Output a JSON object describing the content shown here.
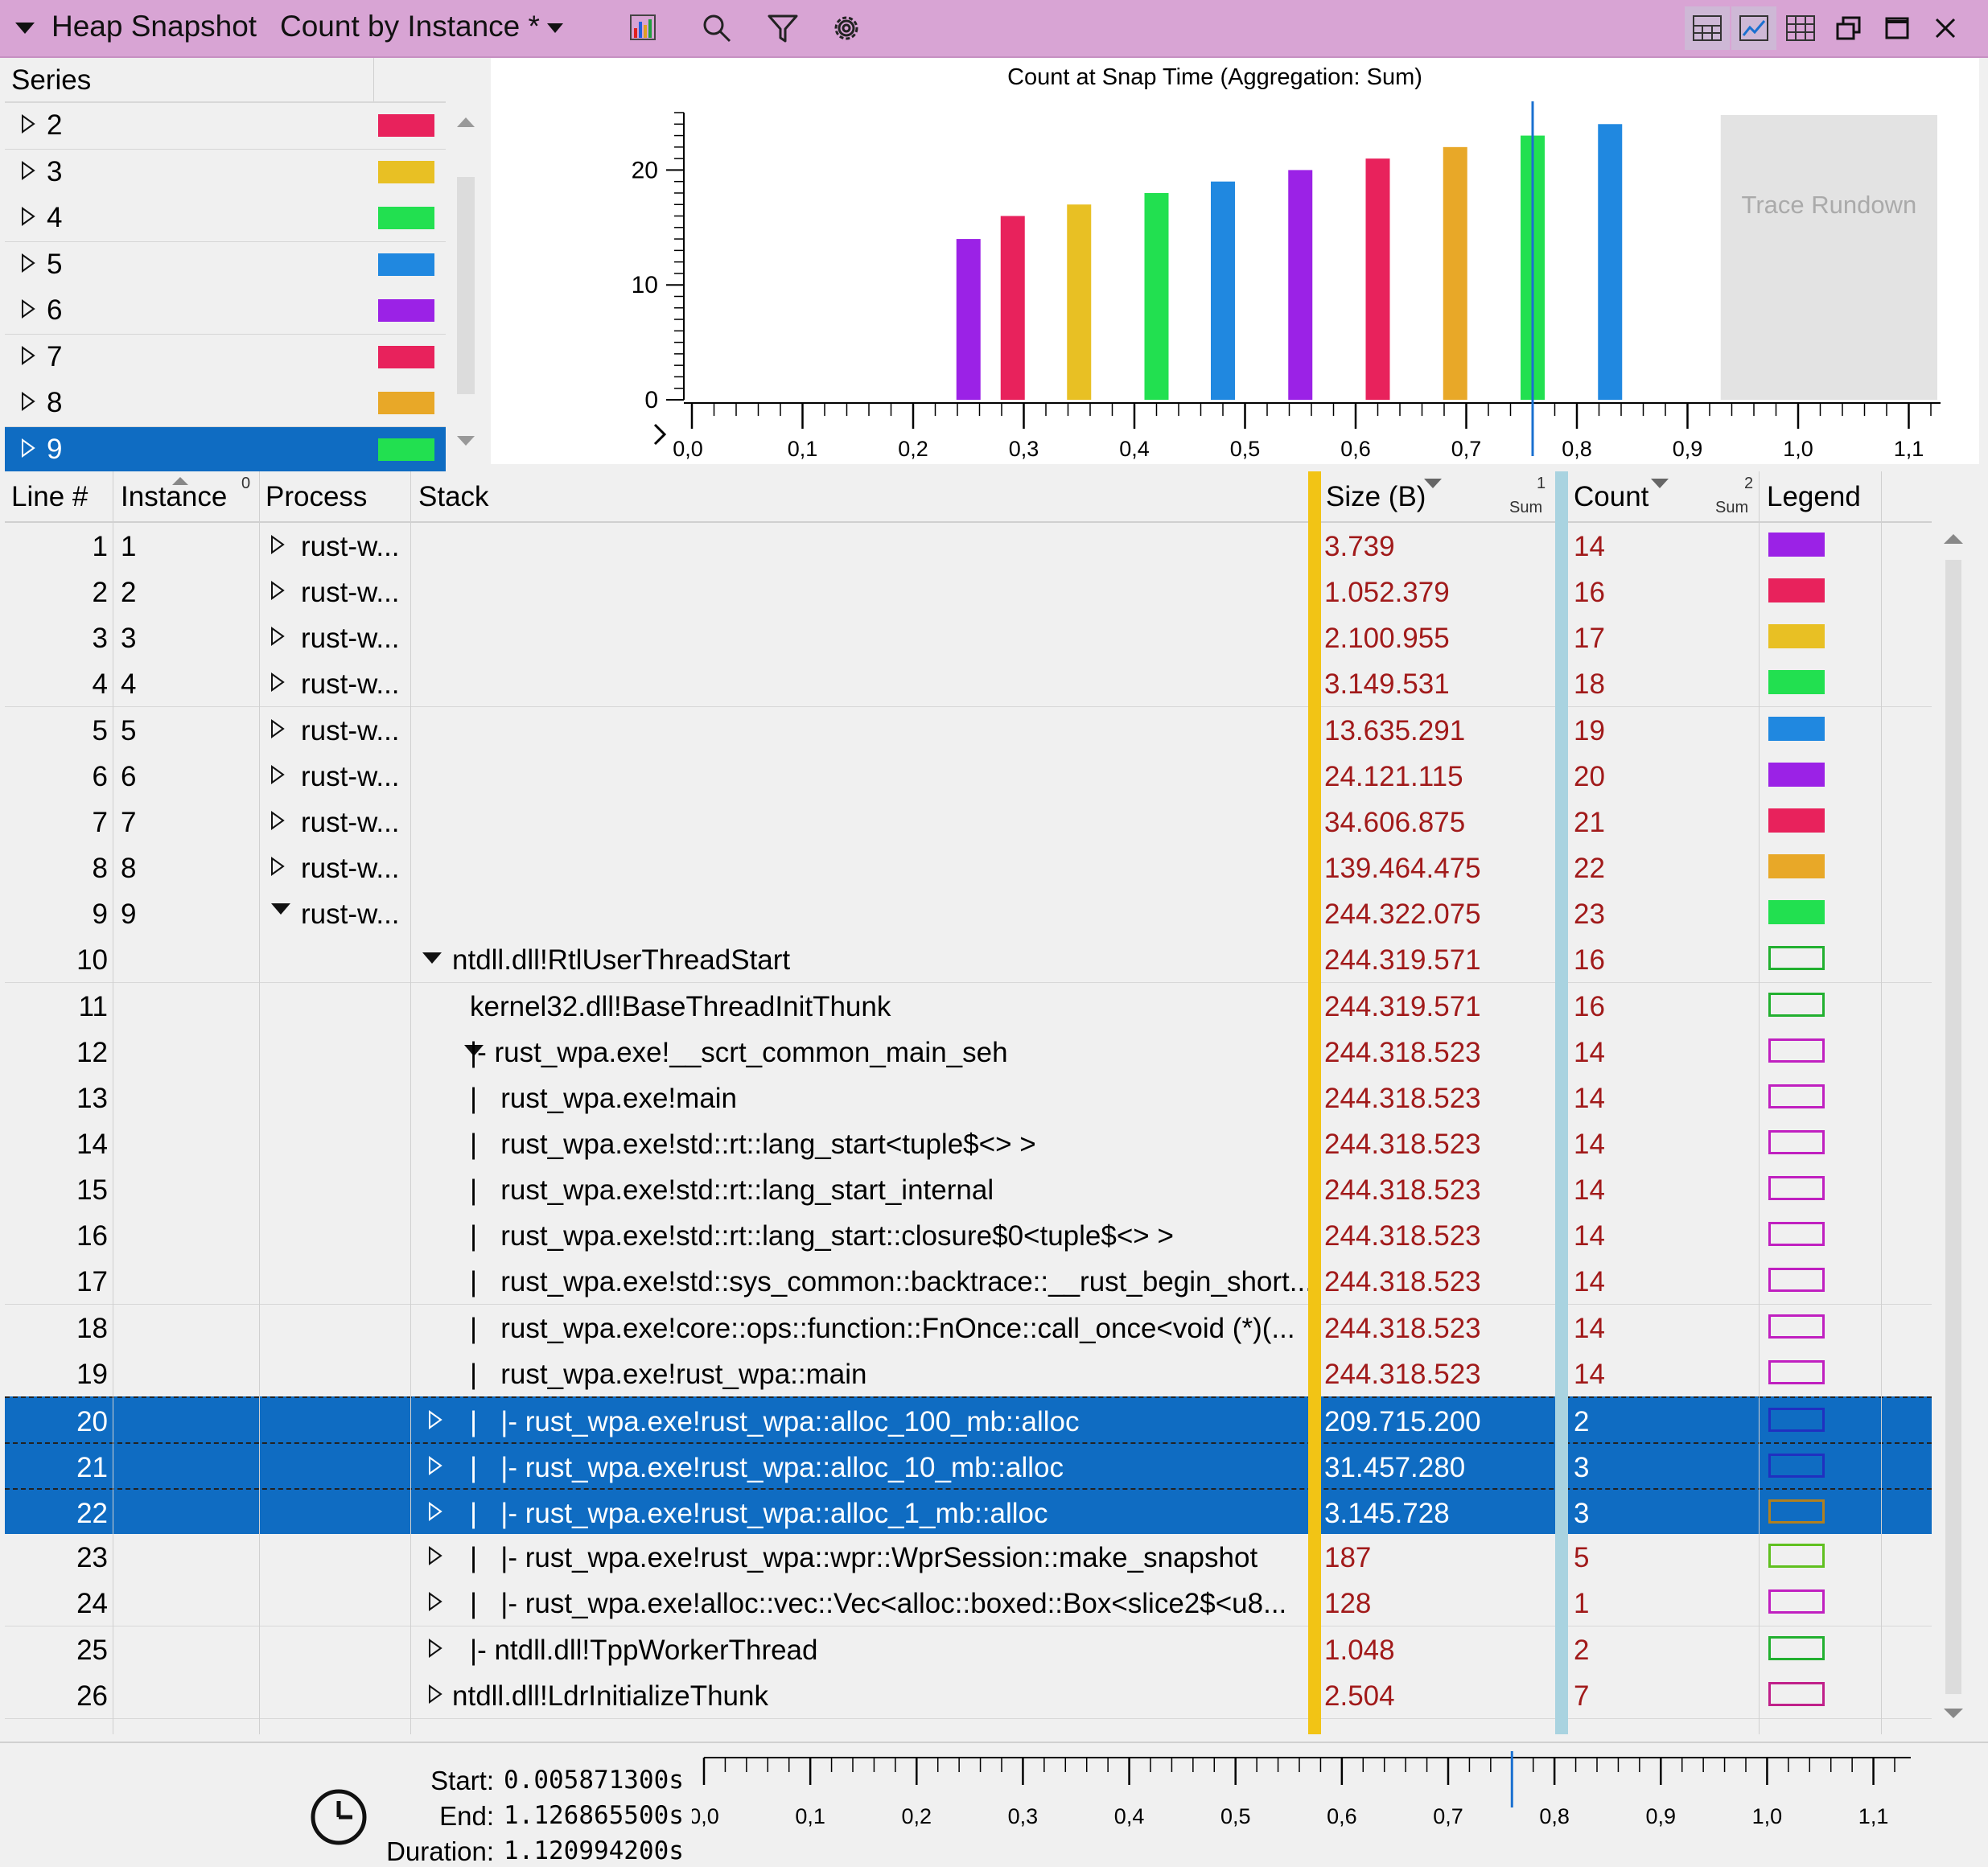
{
  "titlebar": {
    "title": "Heap Snapshot",
    "view": "Count by Instance *",
    "icons": [
      "chart-icon",
      "search-icon",
      "filter-icon",
      "settings-icon"
    ],
    "window_icons": [
      "table-graph-icon",
      "graph-icon",
      "table-icon",
      "restore-icon",
      "maximize-icon",
      "close-icon"
    ]
  },
  "series": {
    "header": "Series",
    "items": [
      {
        "label": "2",
        "color": "#e8225c"
      },
      {
        "label": "3",
        "color": "#e8c024"
      },
      {
        "label": "4",
        "color": "#22e050"
      },
      {
        "label": "5",
        "color": "#2088e0"
      },
      {
        "label": "6",
        "color": "#9b22e6"
      },
      {
        "label": "7",
        "color": "#e8225c"
      },
      {
        "label": "8",
        "color": "#e8a828"
      },
      {
        "label": "9",
        "color": "#22e050",
        "selected": true
      }
    ]
  },
  "chart_data": {
    "type": "bar",
    "title": "Count at Snap Time (Aggregation: Sum)",
    "x": [
      0.25,
      0.29,
      0.35,
      0.42,
      0.48,
      0.55,
      0.62,
      0.69,
      0.76,
      0.83
    ],
    "values": [
      14,
      16,
      17,
      18,
      19,
      20,
      21,
      22,
      23,
      24
    ],
    "colors": [
      "#9b22e6",
      "#e8225c",
      "#e8c024",
      "#22e050",
      "#2088e0",
      "#9b22e6",
      "#e8225c",
      "#e8a828",
      "#22e050",
      "#2088e0"
    ],
    "xlim": [
      0.0,
      1.12
    ],
    "ylim": [
      0,
      25
    ],
    "yticks": [
      "0",
      "10",
      "20"
    ],
    "xticks": [
      "0,0",
      "0,1",
      "0,2",
      "0,3",
      "0,4",
      "0,5",
      "0,6",
      "0,7",
      "0,8",
      "0,9",
      "1,0",
      "1,1"
    ],
    "cursor_x": 0.76,
    "rundown_start": 0.93,
    "rundown_label": "Trace Rundown"
  },
  "table": {
    "headers": {
      "line": "Line #",
      "instance": "Instance",
      "instance_sort": "0",
      "process": "Process",
      "stack": "Stack",
      "size": "Size (B)",
      "size_idx": "1",
      "size_agg": "Sum",
      "count": "Count",
      "count_idx": "2",
      "count_agg": "Sum",
      "legend": "Legend"
    },
    "rows": [
      {
        "line": "1",
        "instance": "1",
        "process": "rust-w...",
        "expander": "collapsed",
        "stack": "",
        "size": "3.739",
        "count": "14",
        "legend": "#9b22e6",
        "filled": true
      },
      {
        "line": "2",
        "instance": "2",
        "process": "rust-w...",
        "expander": "collapsed",
        "stack": "",
        "size": "1.052.379",
        "count": "16",
        "legend": "#e8225c",
        "filled": true
      },
      {
        "line": "3",
        "instance": "3",
        "process": "rust-w...",
        "expander": "collapsed",
        "stack": "",
        "size": "2.100.955",
        "count": "17",
        "legend": "#e8c024",
        "filled": true
      },
      {
        "line": "4",
        "instance": "4",
        "process": "rust-w...",
        "expander": "collapsed",
        "stack": "",
        "size": "3.149.531",
        "count": "18",
        "legend": "#22e050",
        "filled": true
      },
      {
        "line": "5",
        "instance": "5",
        "process": "rust-w...",
        "expander": "collapsed",
        "stack": "",
        "size": "13.635.291",
        "count": "19",
        "legend": "#2088e0",
        "filled": true
      },
      {
        "line": "6",
        "instance": "6",
        "process": "rust-w...",
        "expander": "collapsed",
        "stack": "",
        "size": "24.121.115",
        "count": "20",
        "legend": "#9b22e6",
        "filled": true
      },
      {
        "line": "7",
        "instance": "7",
        "process": "rust-w...",
        "expander": "collapsed",
        "stack": "",
        "size": "34.606.875",
        "count": "21",
        "legend": "#e8225c",
        "filled": true
      },
      {
        "line": "8",
        "instance": "8",
        "process": "rust-w...",
        "expander": "collapsed",
        "stack": "",
        "size": "139.464.475",
        "count": "22",
        "legend": "#e8a828",
        "filled": true
      },
      {
        "line": "9",
        "instance": "9",
        "process": "rust-w...",
        "expander": "expanded",
        "stack": "",
        "size": "244.322.075",
        "count": "23",
        "legend": "#22e050",
        "filled": true
      },
      {
        "line": "10",
        "instance": "",
        "process": "",
        "stack_exp": "expanded",
        "stack_indent": 0,
        "stack": "ntdll.dll!RtlUserThreadStart",
        "size": "244.319.571",
        "count": "16",
        "legend": "#22b030",
        "filled": false
      },
      {
        "line": "11",
        "instance": "",
        "process": "",
        "stack_exp": "none",
        "stack_indent": 1,
        "stack": "kernel32.dll!BaseThreadInitThunk",
        "size": "244.319.571",
        "count": "16",
        "legend": "#22b030",
        "filled": false
      },
      {
        "line": "12",
        "instance": "",
        "process": "",
        "stack_exp": "expanded",
        "stack_indent": 1,
        "stack": "|- rust_wpa.exe!__scrt_common_main_seh",
        "size": "244.318.523",
        "count": "14",
        "legend": "#c020c0",
        "filled": false
      },
      {
        "line": "13",
        "instance": "",
        "process": "",
        "stack_exp": "none",
        "stack_indent": 2,
        "stack": "|   rust_wpa.exe!main",
        "size": "244.318.523",
        "count": "14",
        "legend": "#c020c0",
        "filled": false
      },
      {
        "line": "14",
        "instance": "",
        "process": "",
        "stack_exp": "none",
        "stack_indent": 2,
        "stack": "|   rust_wpa.exe!std::rt::lang_start<tuple$<> >",
        "size": "244.318.523",
        "count": "14",
        "legend": "#c020c0",
        "filled": false
      },
      {
        "line": "15",
        "instance": "",
        "process": "",
        "stack_exp": "none",
        "stack_indent": 2,
        "stack": "|   rust_wpa.exe!std::rt::lang_start_internal",
        "size": "244.318.523",
        "count": "14",
        "legend": "#c020c0",
        "filled": false
      },
      {
        "line": "16",
        "instance": "",
        "process": "",
        "stack_exp": "none",
        "stack_indent": 2,
        "stack": "|   rust_wpa.exe!std::rt::lang_start::closure$0<tuple$<> >",
        "size": "244.318.523",
        "count": "14",
        "legend": "#c020c0",
        "filled": false
      },
      {
        "line": "17",
        "instance": "",
        "process": "",
        "stack_exp": "none",
        "stack_indent": 2,
        "stack": "|   rust_wpa.exe!std::sys_common::backtrace::__rust_begin_short...",
        "size": "244.318.523",
        "count": "14",
        "legend": "#c020c0",
        "filled": false
      },
      {
        "line": "18",
        "instance": "",
        "process": "",
        "stack_exp": "none",
        "stack_indent": 2,
        "stack": "|   rust_wpa.exe!core::ops::function::FnOnce::call_once<void (*)(...",
        "size": "244.318.523",
        "count": "14",
        "legend": "#c020c0",
        "filled": false
      },
      {
        "line": "19",
        "instance": "",
        "process": "",
        "stack_exp": "none",
        "stack_indent": 2,
        "stack": "|   rust_wpa.exe!rust_wpa::main",
        "size": "244.318.523",
        "count": "14",
        "legend": "#c020c0",
        "filled": false
      },
      {
        "line": "20",
        "instance": "",
        "process": "",
        "stack_exp": "collapsed",
        "stack_indent": 0,
        "stack": "|   |- rust_wpa.exe!rust_wpa::alloc_100_mb::alloc",
        "size": "209.715.200",
        "count": "2",
        "legend": "#2030c0",
        "filled": false,
        "selected": true
      },
      {
        "line": "21",
        "instance": "",
        "process": "",
        "stack_exp": "collapsed",
        "stack_indent": 0,
        "stack": "|   |- rust_wpa.exe!rust_wpa::alloc_10_mb::alloc",
        "size": "31.457.280",
        "count": "3",
        "legend": "#2030c0",
        "filled": false,
        "selected": true
      },
      {
        "line": "22",
        "instance": "",
        "process": "",
        "stack_exp": "collapsed",
        "stack_indent": 0,
        "stack": "|   |- rust_wpa.exe!rust_wpa::alloc_1_mb::alloc",
        "size": "3.145.728",
        "count": "3",
        "legend": "#b08020",
        "filled": false,
        "selected": true
      },
      {
        "line": "23",
        "instance": "",
        "process": "",
        "stack_exp": "collapsed",
        "stack_indent": 0,
        "stack": "|   |- rust_wpa.exe!rust_wpa::wpr::WprSession::make_snapshot",
        "size": "187",
        "count": "5",
        "legend": "#60c020",
        "filled": false
      },
      {
        "line": "24",
        "instance": "",
        "process": "",
        "stack_exp": "collapsed",
        "stack_indent": 0,
        "stack": "|   |- rust_wpa.exe!alloc::vec::Vec<alloc::boxed::Box<slice2$<u8...",
        "size": "128",
        "count": "1",
        "legend": "#c020c0",
        "filled": false
      },
      {
        "line": "25",
        "instance": "",
        "process": "",
        "stack_exp": "collapsed",
        "stack_indent": 0,
        "stack": "|- ntdll.dll!TppWorkerThread",
        "size": "1.048",
        "count": "2",
        "legend": "#22b030",
        "filled": false
      },
      {
        "line": "26",
        "instance": "",
        "process": "",
        "stack_exp": "collapsed",
        "stack_indent": 0,
        "stack": "ntdll.dll!LdrInitializeThunk",
        "size": "2.504",
        "count": "7",
        "legend": "#c0208a",
        "filled": false
      }
    ]
  },
  "footer": {
    "start_label": "Start:",
    "start_value": "0.005871300s",
    "end_label": "End:",
    "end_value": "1.126865500s",
    "duration_label": "Duration:",
    "duration_value": "1.120994200s",
    "icon": "clock-icon",
    "xticks": [
      "0,0",
      "0,1",
      "0,2",
      "0,3",
      "0,4",
      "0,5",
      "0,6",
      "0,7",
      "0,8",
      "0,9",
      "1,0",
      "1,1"
    ]
  }
}
